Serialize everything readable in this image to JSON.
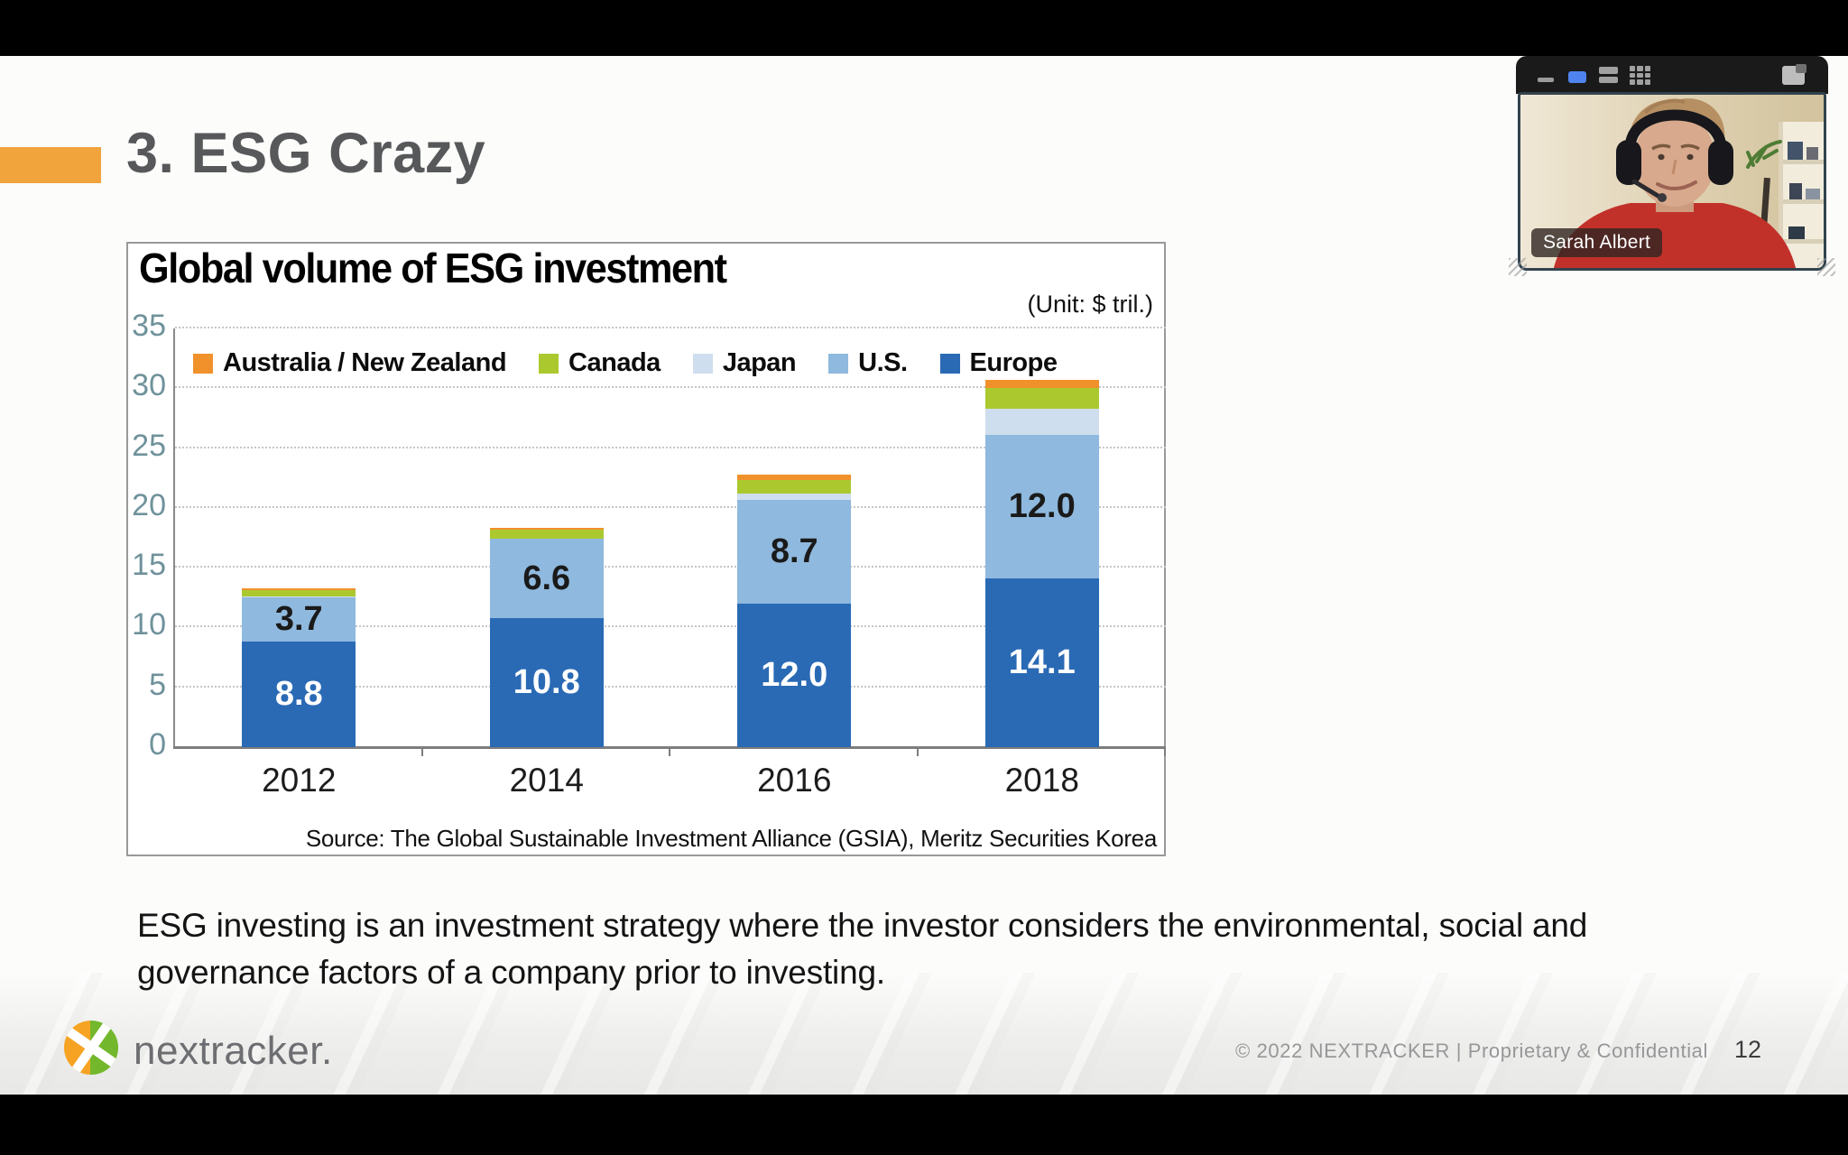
{
  "slide": {
    "heading": "3. ESG Crazy",
    "body_text": "ESG investing is an investment strategy where the investor considers the environmental, social and governance factors of a company prior to investing.",
    "footer": {
      "logo_text": "nextracker.",
      "copyright": "© 2022  NEXTRACKER  |  Proprietary & Confidential",
      "page_number": "12"
    },
    "accent_color": "#f1a33c"
  },
  "chart_data": {
    "type": "bar",
    "stacked": true,
    "title": "Global volume of ESG investment",
    "unit_label": "(Unit: $ tril.)",
    "source": "Source: The Global Sustainable Investment Alliance (GSIA), Meritz Securities Korea",
    "categories": [
      "2012",
      "2014",
      "2016",
      "2018"
    ],
    "series": [
      {
        "key": "europe",
        "name": "Europe",
        "color": "#2a6ab5",
        "values": [
          8.8,
          10.8,
          12.0,
          14.1
        ],
        "labels": [
          "8.8",
          "10.8",
          "12.0",
          "14.1"
        ],
        "label_color": "#ffffff"
      },
      {
        "key": "us",
        "name": "U.S.",
        "color": "#8fb9de",
        "values": [
          3.7,
          6.6,
          8.7,
          12.0
        ],
        "labels": [
          "3.7",
          "6.6",
          "8.7",
          "12.0"
        ],
        "label_color": "#1a1a1a"
      },
      {
        "key": "japan",
        "name": "Japan",
        "color": "#cfdeee",
        "values": [
          0.1,
          0.05,
          0.5,
          2.2
        ]
      },
      {
        "key": "canada",
        "name": "Canada",
        "color": "#abc92f",
        "values": [
          0.55,
          0.7,
          1.1,
          1.7
        ]
      },
      {
        "key": "anz",
        "name": "Australia / New Zealand",
        "color": "#f0912c",
        "values": [
          0.15,
          0.2,
          0.5,
          0.7
        ]
      }
    ],
    "legend_order": [
      "anz",
      "canada",
      "japan",
      "us",
      "europe"
    ],
    "y_axis": {
      "min": 0,
      "max": 35,
      "step": 5
    },
    "grid": "dotted horizontal",
    "legend_position": "top-left inside plot"
  },
  "webcam": {
    "participant_name": "Sarah Albert",
    "titlebar_icons": [
      "minimize-icon",
      "active-speaker-icon",
      "speaker-view-icon",
      "gallery-view-icon",
      "layout-icon"
    ]
  }
}
